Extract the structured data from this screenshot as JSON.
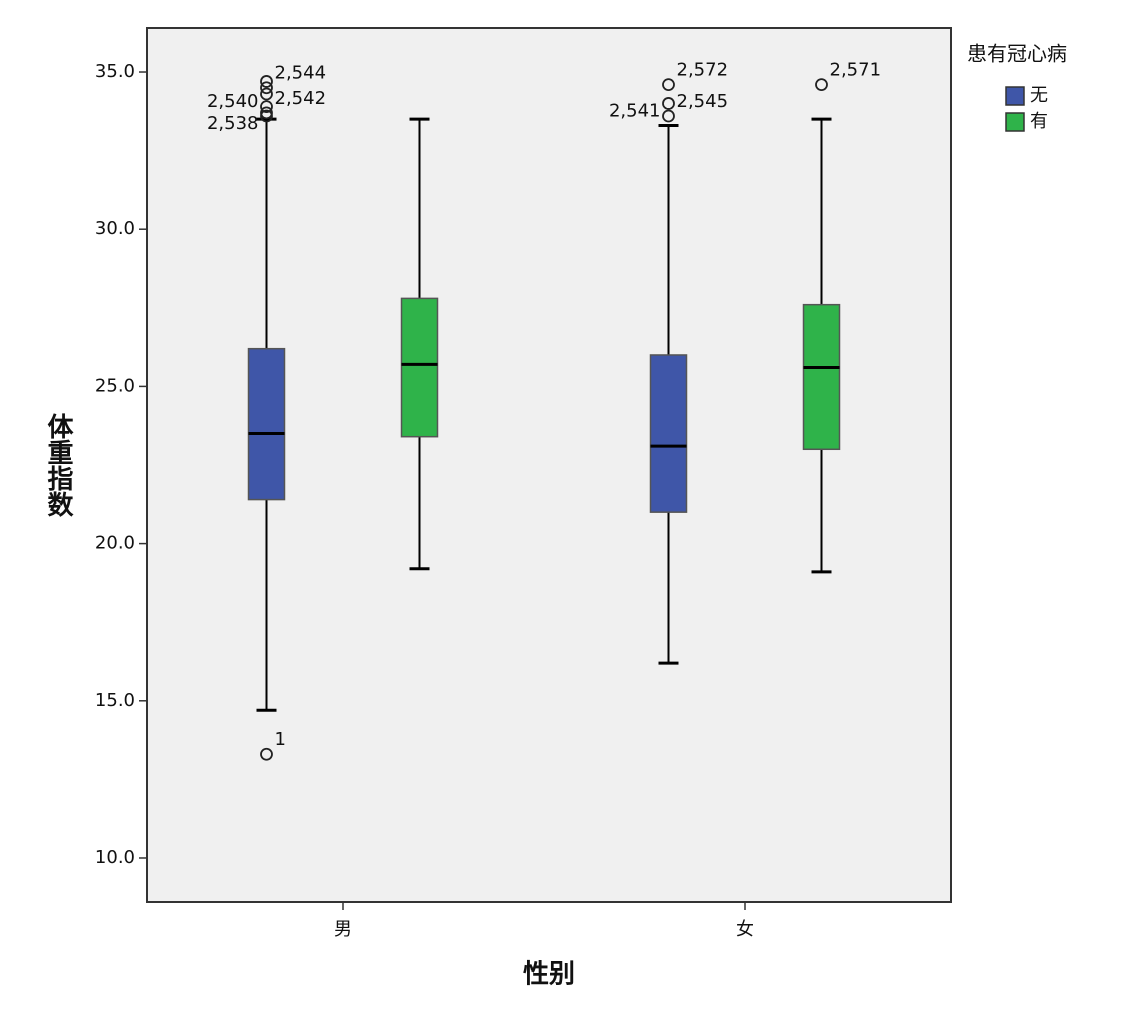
{
  "chart_data": {
    "type": "boxplot",
    "x_label": "性别",
    "y_label": "体重指数",
    "legend_title": "患有冠心病",
    "categories": [
      "男",
      "女"
    ],
    "ylim": [
      8.6,
      36.4
    ],
    "yticks": [
      {
        "value": 10,
        "label": "10.0"
      },
      {
        "value": 15,
        "label": "15.0"
      },
      {
        "value": 20,
        "label": "20.0"
      },
      {
        "value": 25,
        "label": "25.0"
      },
      {
        "value": 30,
        "label": "30.0"
      },
      {
        "value": 35,
        "label": "35.0"
      }
    ],
    "legend": "right",
    "series": [
      {
        "name": "无",
        "color": "#3f56a8",
        "whisker_low": [
          14.7,
          16.2
        ],
        "q1": [
          21.4,
          21.0
        ],
        "median": [
          23.5,
          23.1
        ],
        "q3": [
          26.2,
          26.0
        ],
        "whisker_high": [
          33.5,
          33.3
        ],
        "outliers": [
          [
            {
              "value": 34.7
            },
            {
              "value": 34.5,
              "label": "2,544"
            },
            {
              "value": 34.3,
              "label": "2,540"
            },
            {
              "value": 33.9
            },
            {
              "value": 33.7,
              "label": "2,542"
            },
            {
              "value": 33.6,
              "label": "2,538"
            },
            {
              "value": 13.3,
              "label": "1"
            }
          ],
          [
            {
              "value": 34.6,
              "label": "2,572"
            },
            {
              "value": 34.0,
              "label": "2,541"
            },
            {
              "value": 33.6,
              "label": "2,545"
            }
          ]
        ]
      },
      {
        "name": "有",
        "color": "#2fb34a",
        "whisker_low": [
          19.2,
          19.1
        ],
        "q1": [
          23.4,
          23.0
        ],
        "median": [
          25.7,
          25.6
        ],
        "q3": [
          27.8,
          27.6
        ],
        "whisker_high": [
          33.5,
          33.5
        ],
        "outliers": [
          [],
          [
            {
              "value": 34.6,
              "label": "2,571"
            }
          ]
        ]
      }
    ]
  }
}
